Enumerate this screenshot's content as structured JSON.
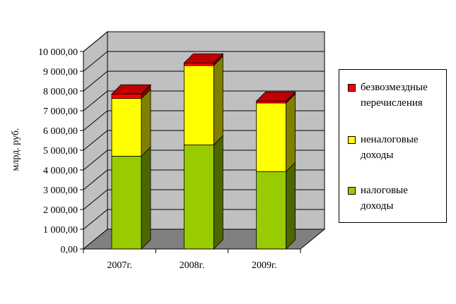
{
  "chart_data": {
    "type": "bar",
    "stacked": true,
    "style": "3d",
    "categories": [
      "2007г.",
      "2008г.",
      "2009г."
    ],
    "series": [
      {
        "name": "налоговые доходы",
        "color": "#99cc00",
        "values": [
          4700,
          5270,
          3920
        ]
      },
      {
        "name": "неналоговые доходы",
        "color": "#ffff00",
        "values": [
          2920,
          4020,
          3470
        ]
      },
      {
        "name": "безвозмездные перечисления",
        "color": "#ff0000",
        "values": [
          230,
          130,
          100
        ]
      }
    ],
    "ylabel": "млрд. руб.",
    "ylim": [
      0,
      10000
    ],
    "yticks": [
      "0,00",
      "1 000,00",
      "2 000,00",
      "3 000,00",
      "4 000,00",
      "5 000,00",
      "6 000,00",
      "7 000,00",
      "8 000,00",
      "9 000,00",
      "10 000,00"
    ],
    "grid": true,
    "legend_position": "right"
  },
  "legend": {
    "items": [
      {
        "label": "безвозмездные\nперечисления",
        "color": "#ff0000"
      },
      {
        "label": "неналоговые\nдоходы",
        "color": "#ffff00"
      },
      {
        "label": "налоговые\nдоходы",
        "color": "#99cc00"
      }
    ]
  }
}
